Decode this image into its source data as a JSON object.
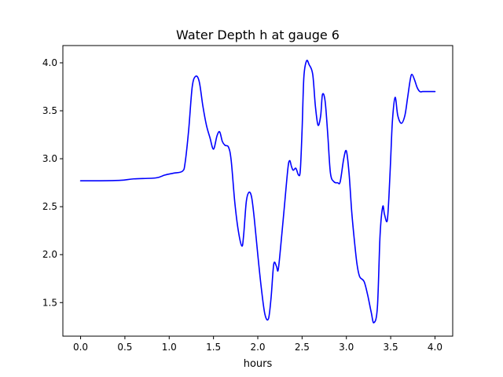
{
  "chart_data": {
    "type": "line",
    "title": "Water Depth h at gauge 6",
    "xlabel": "hours",
    "ylabel": "",
    "xlim": [
      -0.2,
      4.2
    ],
    "ylim": [
      1.15,
      4.18
    ],
    "xticks": [
      0.0,
      0.5,
      1.0,
      1.5,
      2.0,
      2.5,
      3.0,
      3.5,
      4.0
    ],
    "xtick_labels": [
      "0.0",
      "0.5",
      "1.0",
      "1.5",
      "2.0",
      "2.5",
      "3.0",
      "3.5",
      "4.0"
    ],
    "yticks": [
      1.5,
      2.0,
      2.5,
      3.0,
      3.5,
      4.0
    ],
    "ytick_labels": [
      "1.5",
      "2.0",
      "2.5",
      "3.0",
      "3.5",
      "4.0"
    ],
    "grid": false,
    "legend": "none",
    "series": [
      {
        "color": "#0000ff",
        "x": [
          0.0,
          0.2,
          0.45,
          0.6,
          0.85,
          0.95,
          1.05,
          1.15,
          1.18,
          1.22,
          1.26,
          1.3,
          1.34,
          1.38,
          1.42,
          1.46,
          1.5,
          1.54,
          1.57,
          1.6,
          1.63,
          1.67,
          1.7,
          1.74,
          1.78,
          1.82,
          1.84,
          1.87,
          1.9,
          1.93,
          1.96,
          2.0,
          2.04,
          2.08,
          2.12,
          2.15,
          2.18,
          2.21,
          2.23,
          2.26,
          2.3,
          2.34,
          2.36,
          2.38,
          2.4,
          2.43,
          2.46,
          2.48,
          2.5,
          2.52,
          2.55,
          2.58,
          2.62,
          2.65,
          2.68,
          2.71,
          2.73,
          2.76,
          2.79,
          2.82,
          2.86,
          2.9,
          2.93,
          2.97,
          3.0,
          3.03,
          3.06,
          3.09,
          3.12,
          3.15,
          3.2,
          3.24,
          3.28,
          3.31,
          3.35,
          3.38,
          3.41,
          3.43,
          3.46,
          3.48,
          3.5,
          3.52,
          3.55,
          3.58,
          3.62,
          3.66,
          3.69,
          3.72,
          3.74,
          3.77,
          3.8,
          3.83,
          3.86,
          3.9,
          3.93,
          3.96,
          4.0
        ],
        "y": [
          2.77,
          2.77,
          2.775,
          2.79,
          2.8,
          2.83,
          2.85,
          2.87,
          2.96,
          3.3,
          3.75,
          3.86,
          3.8,
          3.55,
          3.35,
          3.22,
          3.1,
          3.24,
          3.28,
          3.18,
          3.14,
          3.12,
          2.98,
          2.55,
          2.25,
          2.09,
          2.2,
          2.55,
          2.65,
          2.6,
          2.38,
          2.0,
          1.65,
          1.38,
          1.33,
          1.55,
          1.9,
          1.88,
          1.84,
          2.1,
          2.5,
          2.9,
          2.98,
          2.92,
          2.88,
          2.9,
          2.83,
          2.88,
          3.3,
          3.85,
          4.02,
          3.98,
          3.88,
          3.55,
          3.35,
          3.45,
          3.67,
          3.6,
          3.25,
          2.85,
          2.76,
          2.75,
          2.76,
          3.0,
          3.08,
          2.85,
          2.45,
          2.15,
          1.9,
          1.77,
          1.72,
          1.58,
          1.4,
          1.29,
          1.45,
          2.2,
          2.5,
          2.42,
          2.35,
          2.6,
          3.0,
          3.4,
          3.64,
          3.45,
          3.37,
          3.45,
          3.63,
          3.82,
          3.88,
          3.82,
          3.74,
          3.7,
          3.7,
          3.7,
          3.7,
          3.7,
          3.7
        ]
      }
    ]
  }
}
